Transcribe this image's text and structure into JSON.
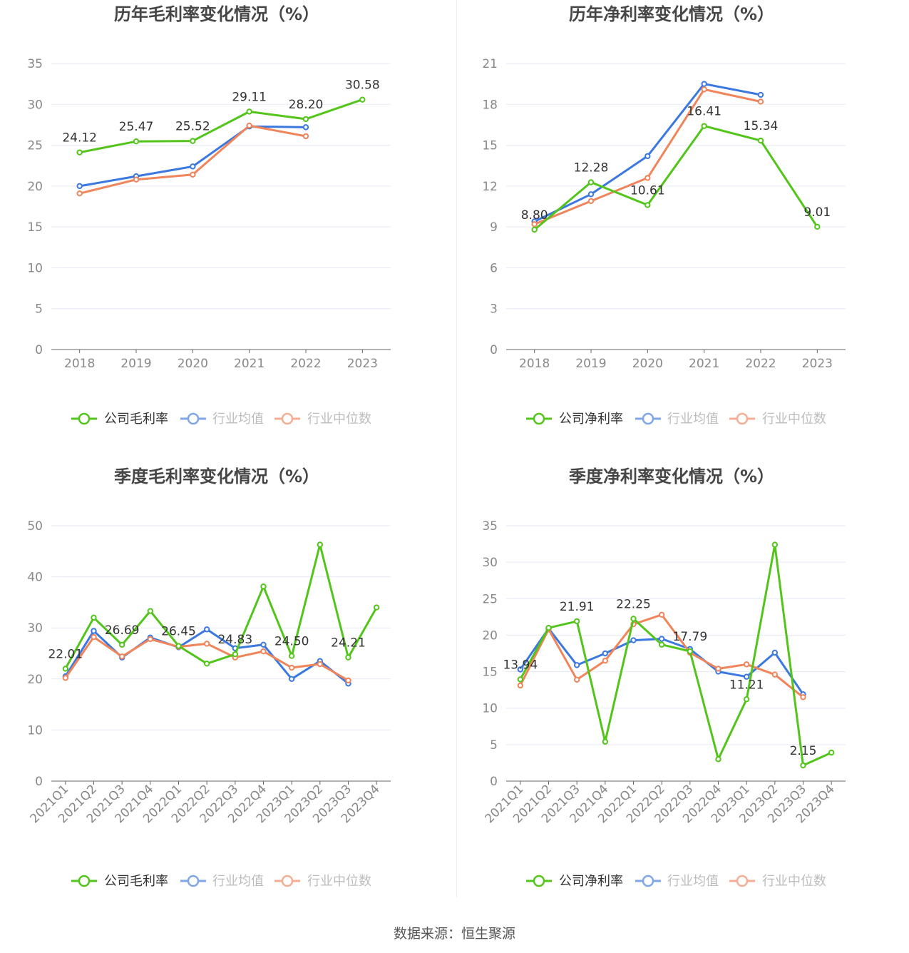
{
  "colors": {
    "company": "#52C41A",
    "average": "#3B78E0",
    "median": "#F0845A",
    "grid": "#E6E9F5",
    "axis": "#666666"
  },
  "legend": {
    "avg": "行业均值",
    "median": "行业中位数"
  },
  "source": "数据来源：恒生聚源",
  "chart_data": [
    {
      "type": "line",
      "title": "历年毛利率变化情况（%）",
      "categories": [
        "2018",
        "2019",
        "2020",
        "2021",
        "2022",
        "2023"
      ],
      "ylim": [
        0,
        35
      ],
      "yticks": [
        0,
        5,
        10,
        15,
        20,
        25,
        30,
        35
      ],
      "grid": true,
      "legend_position": "bottom",
      "series": [
        {
          "name": "公司毛利率",
          "key": "company",
          "values": [
            24.12,
            25.47,
            25.52,
            29.11,
            28.2,
            30.58
          ]
        },
        {
          "name": "行业均值",
          "key": "average",
          "values": [
            20.0,
            21.2,
            22.4,
            27.3,
            27.2,
            null
          ]
        },
        {
          "name": "行业中位数",
          "key": "median",
          "values": [
            19.1,
            20.8,
            21.4,
            27.4,
            26.1,
            null
          ]
        }
      ],
      "data_labels": [
        {
          "index": 0,
          "text": "24.12"
        },
        {
          "index": 1,
          "text": "25.47"
        },
        {
          "index": 2,
          "text": "25.52"
        },
        {
          "index": 3,
          "text": "29.11"
        },
        {
          "index": 4,
          "text": "28.20"
        },
        {
          "index": 5,
          "text": "30.58"
        }
      ]
    },
    {
      "type": "line",
      "title": "历年净利率变化情况（%）",
      "categories": [
        "2018",
        "2019",
        "2020",
        "2021",
        "2022",
        "2023"
      ],
      "ylim": [
        0,
        21
      ],
      "yticks": [
        0,
        3,
        6,
        9,
        12,
        15,
        18,
        21
      ],
      "grid": true,
      "legend_position": "bottom",
      "series": [
        {
          "name": "公司净利率",
          "key": "company",
          "values": [
            8.8,
            12.28,
            10.61,
            16.41,
            15.34,
            9.01
          ]
        },
        {
          "name": "行业均值",
          "key": "average",
          "values": [
            9.4,
            11.4,
            14.2,
            19.5,
            18.7,
            null
          ]
        },
        {
          "name": "行业中位数",
          "key": "median",
          "values": [
            9.2,
            10.9,
            12.6,
            19.1,
            18.2,
            null
          ]
        }
      ],
      "data_labels": [
        {
          "index": 0,
          "text": "8.80"
        },
        {
          "index": 1,
          "text": "12.28"
        },
        {
          "index": 2,
          "text": "10.61"
        },
        {
          "index": 3,
          "text": "16.41"
        },
        {
          "index": 4,
          "text": "15.34"
        },
        {
          "index": 5,
          "text": "9.01"
        }
      ]
    },
    {
      "type": "line",
      "title": "季度毛利率变化情况（%）",
      "categories": [
        "2021Q1",
        "2021Q2",
        "2021Q3",
        "2021Q4",
        "2022Q1",
        "2022Q2",
        "2022Q3",
        "2022Q4",
        "2023Q1",
        "2023Q2",
        "2023Q3",
        "2023Q4"
      ],
      "ylim": [
        0,
        50
      ],
      "yticks": [
        0,
        10,
        20,
        30,
        40,
        50
      ],
      "grid": true,
      "legend_position": "bottom",
      "rotated_x_labels": true,
      "series": [
        {
          "name": "公司毛利率",
          "key": "company",
          "values": [
            22.01,
            32.0,
            26.69,
            33.3,
            26.45,
            23.0,
            24.83,
            38.1,
            24.5,
            46.3,
            24.21,
            34.0
          ]
        },
        {
          "name": "行业均值",
          "key": "average",
          "values": [
            20.5,
            29.4,
            24.2,
            28.1,
            26.2,
            29.7,
            26.0,
            26.7,
            20.0,
            23.5,
            19.1,
            null
          ]
        },
        {
          "name": "行业中位数",
          "key": "median",
          "values": [
            20.2,
            28.2,
            24.4,
            27.8,
            26.3,
            26.9,
            24.2,
            25.4,
            22.2,
            22.9,
            19.7,
            null
          ]
        }
      ],
      "data_labels": [
        {
          "index": 0,
          "text": "22.01"
        },
        {
          "index": 2,
          "text": "26.69"
        },
        {
          "index": 4,
          "text": "26.45"
        },
        {
          "index": 6,
          "text": "24.83"
        },
        {
          "index": 8,
          "text": "24.50"
        },
        {
          "index": 10,
          "text": "24.21"
        }
      ]
    },
    {
      "type": "line",
      "title": "季度净利率变化情况（%）",
      "categories": [
        "2021Q1",
        "2021Q2",
        "2021Q3",
        "2021Q4",
        "2022Q1",
        "2022Q2",
        "2022Q3",
        "2022Q4",
        "2023Q1",
        "2023Q2",
        "2023Q3",
        "2023Q4"
      ],
      "ylim": [
        0,
        35
      ],
      "yticks": [
        0,
        5,
        10,
        15,
        20,
        25,
        30,
        35
      ],
      "grid": true,
      "legend_position": "bottom",
      "rotated_x_labels": true,
      "series": [
        {
          "name": "公司净利率",
          "key": "company",
          "values": [
            13.94,
            21.0,
            21.91,
            5.4,
            22.25,
            18.7,
            17.79,
            3.0,
            11.21,
            32.4,
            2.15,
            3.9
          ]
        },
        {
          "name": "行业均值",
          "key": "average",
          "values": [
            15.3,
            20.9,
            15.9,
            17.5,
            19.3,
            19.5,
            18.1,
            15.0,
            14.3,
            17.6,
            11.9,
            null
          ]
        },
        {
          "name": "行业中位数",
          "key": "median",
          "values": [
            13.1,
            20.8,
            13.9,
            16.5,
            21.5,
            22.8,
            17.6,
            15.4,
            16.0,
            14.6,
            11.5,
            null
          ]
        }
      ],
      "data_labels": [
        {
          "index": 0,
          "text": "13.94"
        },
        {
          "index": 2,
          "text": "21.91"
        },
        {
          "index": 4,
          "text": "22.25"
        },
        {
          "index": 6,
          "text": "17.79"
        },
        {
          "index": 8,
          "text": "11.21"
        },
        {
          "index": 10,
          "text": "2.15"
        }
      ]
    }
  ]
}
